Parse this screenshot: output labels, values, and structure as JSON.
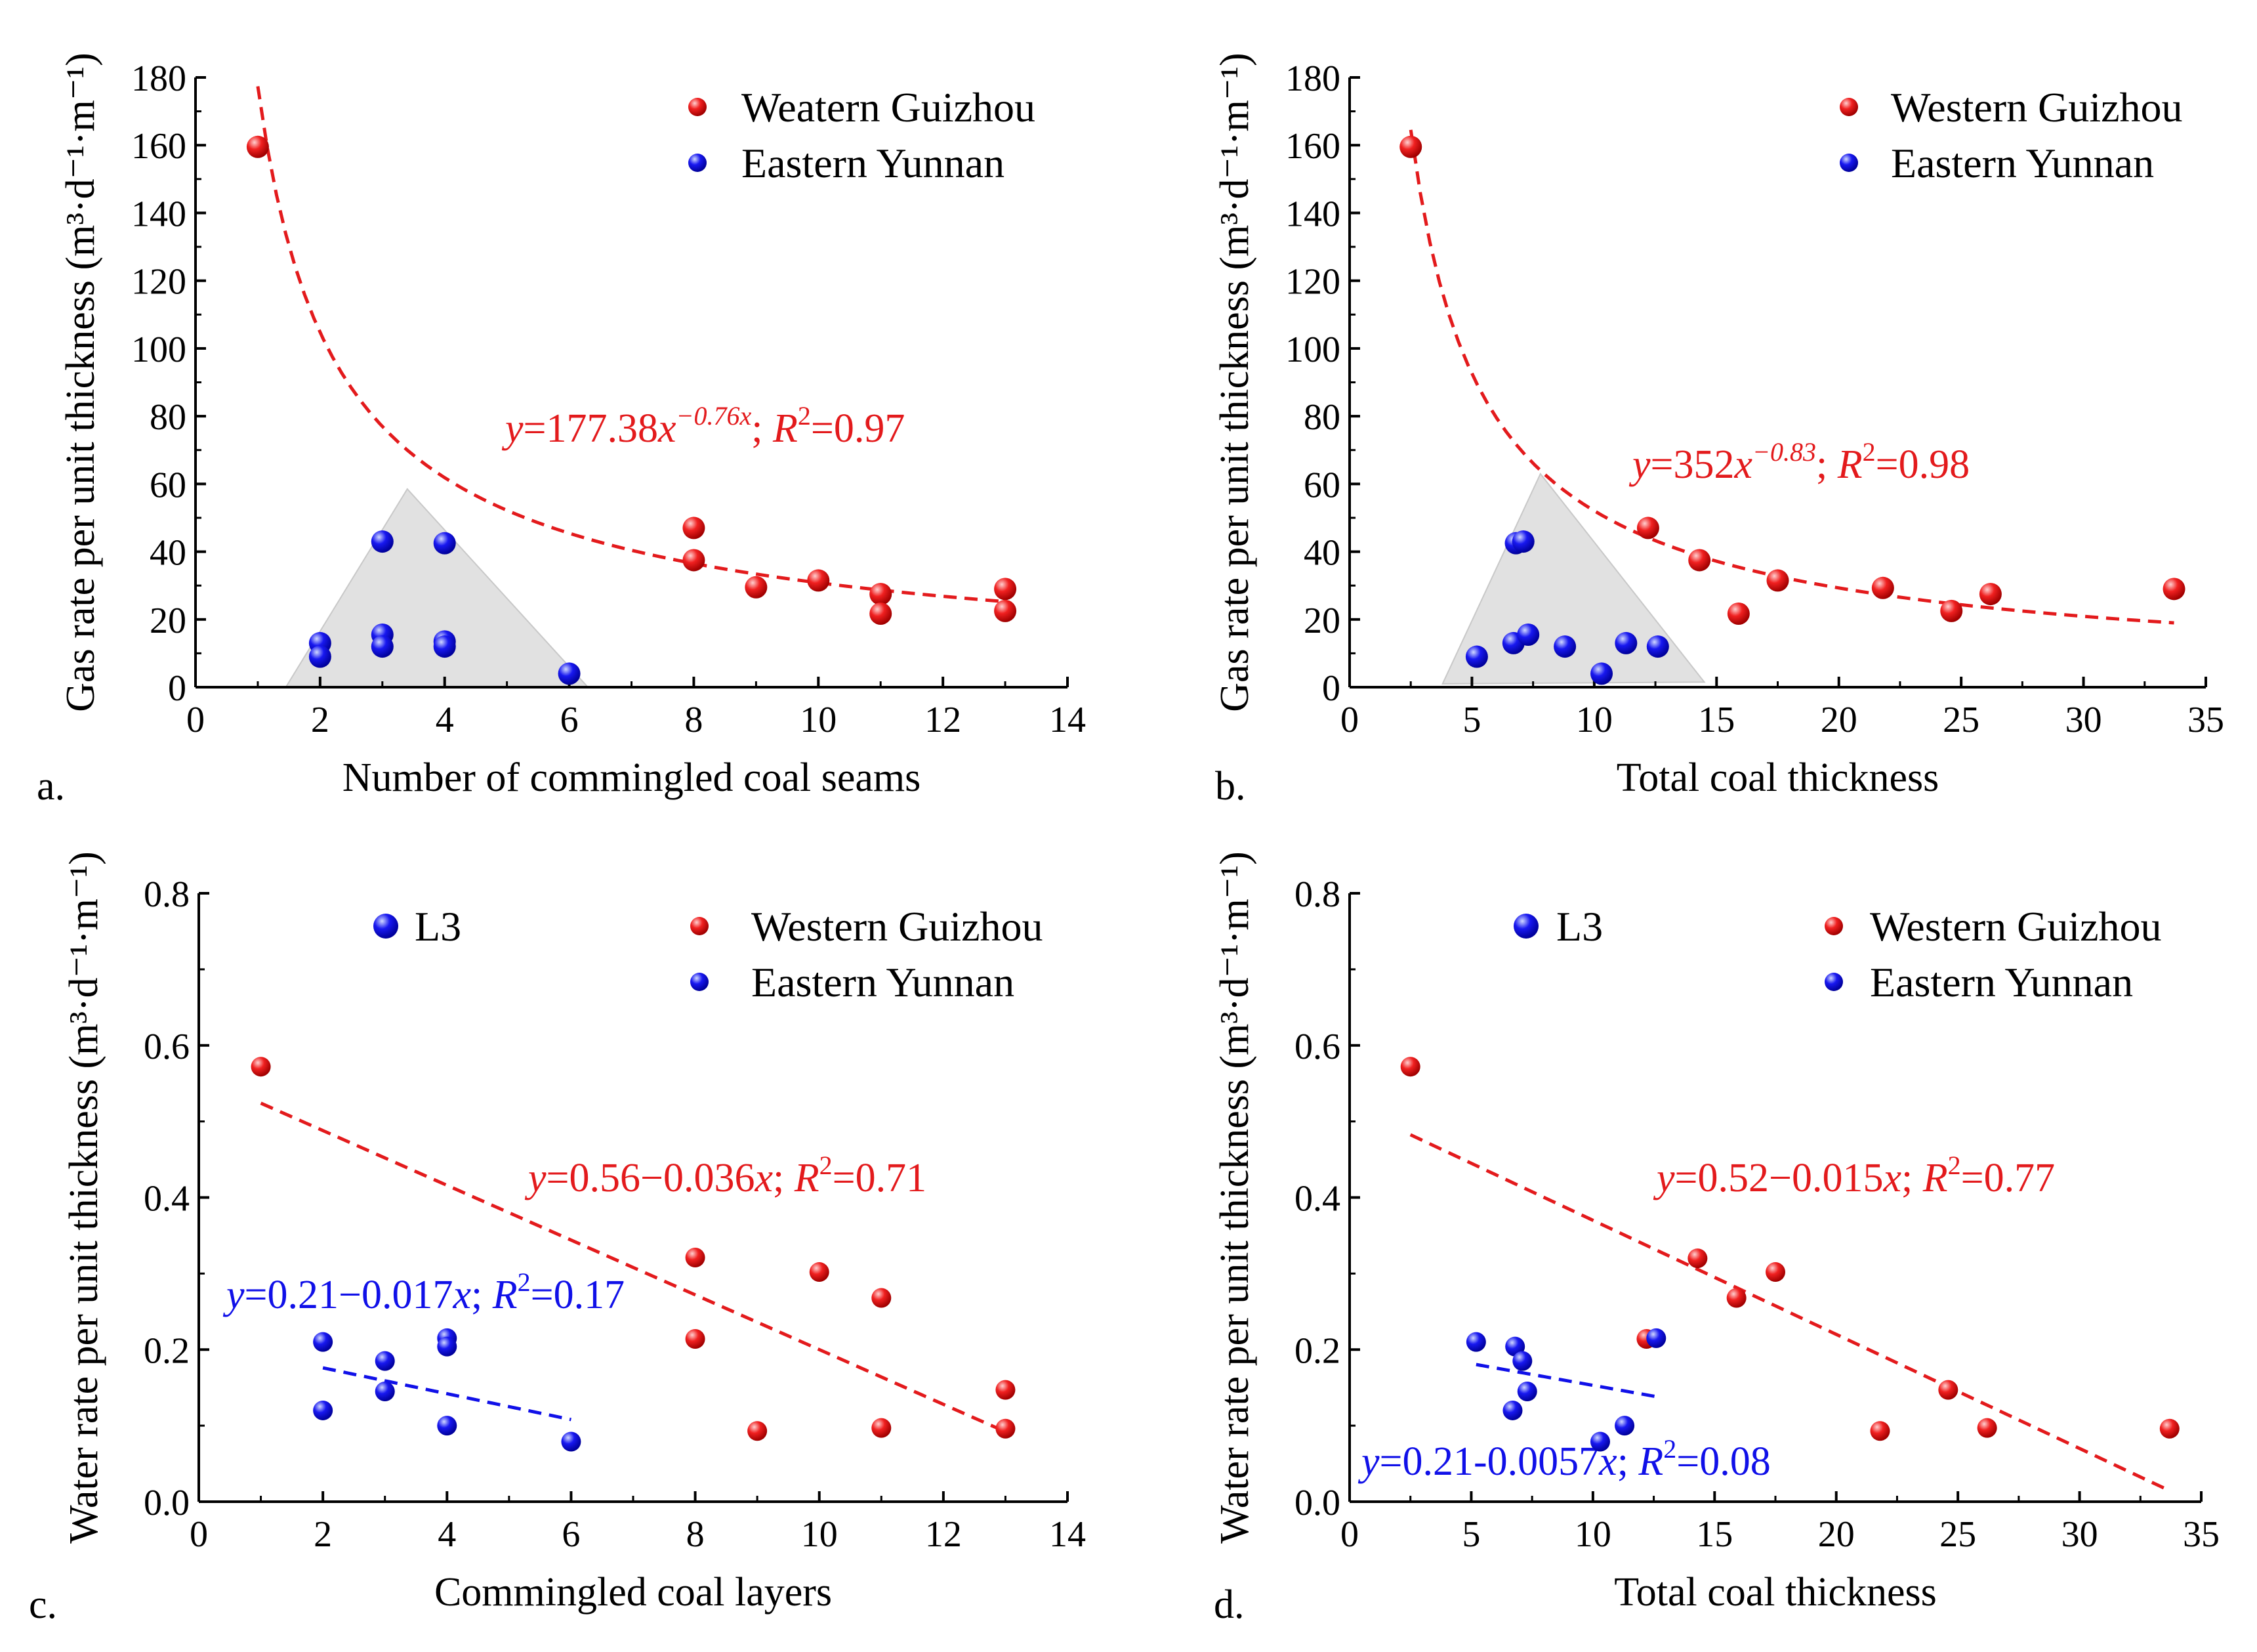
{
  "colors": {
    "red": "#e31a1c",
    "blue": "#1010e8",
    "shade": "#d9d9d9"
  },
  "chart_data": [
    {
      "type": "scatter",
      "panel_label": "a.",
      "xlabel": "Number of commingled coal seams",
      "ylabel": "Gas rate per unit thickness (m³·d⁻¹·m⁻¹)",
      "xlim": [
        0,
        14
      ],
      "ylim": [
        0,
        180
      ],
      "xticks": [
        "0",
        "2",
        "4",
        "6",
        "8",
        "10",
        "12",
        "14"
      ],
      "yticks": [
        "0",
        "20",
        "40",
        "60",
        "80",
        "100",
        "120",
        "140",
        "160",
        "180"
      ],
      "legend": [
        {
          "label": "Weatern Guizhou",
          "color": "red"
        },
        {
          "label": "Eastern Yunnan",
          "color": "blue"
        }
      ],
      "series": [
        {
          "name": "Weatern Guizhou",
          "color": "red",
          "points": [
            [
              1,
              159.5
            ],
            [
              8,
              47
            ],
            [
              8,
              37.5
            ],
            [
              9,
              29.5
            ],
            [
              10,
              31.5
            ],
            [
              11,
              27.5
            ],
            [
              11,
              21.7
            ],
            [
              13,
              29
            ],
            [
              13,
              22.5
            ]
          ]
        },
        {
          "name": "Eastern Yunnan",
          "color": "blue",
          "points": [
            [
              2,
              13
            ],
            [
              2,
              9
            ],
            [
              3,
              43
            ],
            [
              3,
              15.5
            ],
            [
              3,
              12
            ],
            [
              4,
              42.5
            ],
            [
              4,
              13.5
            ],
            [
              4,
              12
            ],
            [
              6,
              4
            ]
          ]
        }
      ],
      "fits": [
        {
          "color": "red",
          "kind": "power",
          "a": 177.38,
          "b": -0.76,
          "x_range": [
            1,
            13
          ],
          "label": {
            "y_letter": "y",
            "mid": "=177.38",
            "x_letter": "x",
            "exponent": "−0.76x",
            "sep": "; ",
            "r_letter": "R",
            "r_power": "2",
            "r_value": "=0.97"
          }
        }
      ],
      "shade_region": {
        "vertices": [
          [
            1.45,
            0
          ],
          [
            3.4,
            58.5
          ],
          [
            6.3,
            0
          ]
        ]
      }
    },
    {
      "type": "scatter",
      "panel_label": "b.",
      "xlabel": "Total coal thickness",
      "ylabel": "Gas rate per unit thickness (m³·d⁻¹·m⁻¹)",
      "xlim": [
        0,
        35
      ],
      "ylim": [
        0,
        180
      ],
      "xticks": [
        "0",
        "5",
        "10",
        "15",
        "20",
        "25",
        "30",
        "35"
      ],
      "yticks": [
        "0",
        "20",
        "40",
        "60",
        "80",
        "100",
        "120",
        "140",
        "160",
        "180"
      ],
      "legend": [
        {
          "label": "Western Guizhou",
          "color": "red"
        },
        {
          "label": "Eastern Yunnan",
          "color": "blue"
        }
      ],
      "series": [
        {
          "name": "Western Guizhou",
          "color": "red",
          "points": [
            [
              2.5,
              159.5
            ],
            [
              12.2,
              47
            ],
            [
              14.3,
              37.5
            ],
            [
              15.9,
              21.7
            ],
            [
              17.5,
              31.5
            ],
            [
              21.8,
              29.3
            ],
            [
              24.6,
              22.5
            ],
            [
              26.2,
              27.5
            ],
            [
              33.7,
              29
            ]
          ]
        },
        {
          "name": "Eastern Yunnan",
          "color": "blue",
          "points": [
            [
              5.2,
              9
            ],
            [
              6.7,
              13
            ],
            [
              6.8,
              42.5
            ],
            [
              7.1,
              43
            ],
            [
              7.3,
              15.5
            ],
            [
              8.8,
              12
            ],
            [
              10.3,
              4
            ],
            [
              11.3,
              13
            ],
            [
              12.6,
              12
            ]
          ]
        }
      ],
      "fits": [
        {
          "color": "red",
          "kind": "power",
          "a": 352,
          "b": -0.83,
          "x_range": [
            2.5,
            33.7
          ],
          "label": {
            "y_letter": "y",
            "mid": "=352",
            "x_letter": "x",
            "exponent": "−0.83",
            "sep": "; ",
            "r_letter": "R",
            "r_power": "2",
            "r_value": "=0.98"
          }
        }
      ],
      "shade_region": {
        "vertices": [
          [
            3.8,
            1
          ],
          [
            7.8,
            63
          ],
          [
            14.5,
            1.5
          ]
        ]
      }
    },
    {
      "type": "scatter",
      "panel_label": "c.",
      "xlabel": "Commingled coal layers",
      "ylabel": "Water rate per unit thickness (m³·d⁻¹·m⁻¹)",
      "xlim": [
        0,
        14
      ],
      "ylim": [
        0,
        0.8
      ],
      "xticks": [
        "0",
        "2",
        "4",
        "6",
        "8",
        "10",
        "12",
        "14"
      ],
      "yticks": [
        "0.0",
        "0.2",
        "0.4",
        "0.6",
        "0.8"
      ],
      "legend": [
        {
          "label": "L3",
          "color": "blue",
          "big": true
        },
        {
          "label": "Western Guizhou",
          "color": "red"
        },
        {
          "label": "Eastern Yunnan",
          "color": "blue"
        }
      ],
      "series": [
        {
          "name": "Western Guizhou",
          "color": "red",
          "points": [
            [
              1,
              0.572
            ],
            [
              8,
              0.321
            ],
            [
              8,
              0.214
            ],
            [
              9,
              0.093
            ],
            [
              10,
              0.302
            ],
            [
              11,
              0.268
            ],
            [
              11,
              0.097
            ],
            [
              13,
              0.147
            ],
            [
              13,
              0.096
            ]
          ]
        },
        {
          "name": "Eastern Yunnan",
          "color": "blue",
          "points": [
            [
              2,
              0.21
            ],
            [
              2,
              0.12
            ],
            [
              3,
              0.185
            ],
            [
              3,
              0.145
            ],
            [
              4,
              0.215
            ],
            [
              4,
              0.204
            ],
            [
              4,
              0.1
            ],
            [
              6,
              0.079
            ]
          ]
        }
      ],
      "fits": [
        {
          "color": "red",
          "kind": "linear",
          "a": 0.56,
          "b": -0.036,
          "x_range": [
            1,
            13
          ],
          "label": {
            "y_letter": "y",
            "mid": "=0.56−0.036",
            "x_letter": "x",
            "exponent": "",
            "sep": "; ",
            "r_letter": "R",
            "r_power": "2",
            "r_value": "=0.71"
          }
        },
        {
          "color": "blue",
          "kind": "linear",
          "a": 0.21,
          "b": -0.017,
          "x_range": [
            2,
            6
          ],
          "label": {
            "y_letter": "y",
            "mid": "=0.21−0.017",
            "x_letter": "x",
            "exponent": "",
            "sep": "; ",
            "r_letter": "R",
            "r_power": "2",
            "r_value": "=0.17"
          }
        }
      ]
    },
    {
      "type": "scatter",
      "panel_label": "d.",
      "xlabel": "Total coal thickness",
      "ylabel": "Water rate per unit thickness (m³·d⁻¹·m⁻¹)",
      "xlim": [
        0,
        35
      ],
      "ylim": [
        0,
        0.8
      ],
      "xticks": [
        "0",
        "5",
        "10",
        "15",
        "20",
        "25",
        "30",
        "35"
      ],
      "yticks": [
        "0.0",
        "0.2",
        "0.4",
        "0.6",
        "0.8"
      ],
      "legend": [
        {
          "label": "L3",
          "color": "blue",
          "big": true
        },
        {
          "label": "Western Guizhou",
          "color": "red"
        },
        {
          "label": "Eastern Yunnan",
          "color": "blue"
        }
      ],
      "series": [
        {
          "name": "Western Guizhou",
          "color": "red",
          "points": [
            [
              2.5,
              0.572
            ],
            [
              12.2,
              0.214
            ],
            [
              14.3,
              0.32
            ],
            [
              15.9,
              0.268
            ],
            [
              17.5,
              0.302
            ],
            [
              21.8,
              0.093
            ],
            [
              24.6,
              0.147
            ],
            [
              26.2,
              0.097
            ],
            [
              33.7,
              0.096
            ]
          ]
        },
        {
          "name": "Eastern Yunnan",
          "color": "blue",
          "points": [
            [
              5.2,
              0.21
            ],
            [
              6.7,
              0.12
            ],
            [
              6.8,
              0.204
            ],
            [
              7.1,
              0.185
            ],
            [
              7.3,
              0.145
            ],
            [
              10.3,
              0.079
            ],
            [
              11.3,
              0.1
            ],
            [
              12.6,
              0.215
            ]
          ]
        }
      ],
      "fits": [
        {
          "color": "red",
          "kind": "linear",
          "a": 0.52,
          "b": -0.015,
          "x_range": [
            2.5,
            33.7
          ],
          "label": {
            "y_letter": "y",
            "mid": "=0.52−0.015",
            "x_letter": "x",
            "exponent": "",
            "sep": "; ",
            "r_letter": "R",
            "r_power": "2",
            "r_value": "=0.77"
          }
        },
        {
          "color": "blue",
          "kind": "linear",
          "a": 0.21,
          "b": -0.0057,
          "x_range": [
            5.2,
            12.6
          ],
          "label": {
            "y_letter": "y",
            "mid": "=0.21-0.0057",
            "x_letter": "x",
            "exponent": "",
            "sep": "; ",
            "r_letter": "R",
            "r_power": "2",
            "r_value": "=0.08"
          }
        }
      ]
    }
  ]
}
